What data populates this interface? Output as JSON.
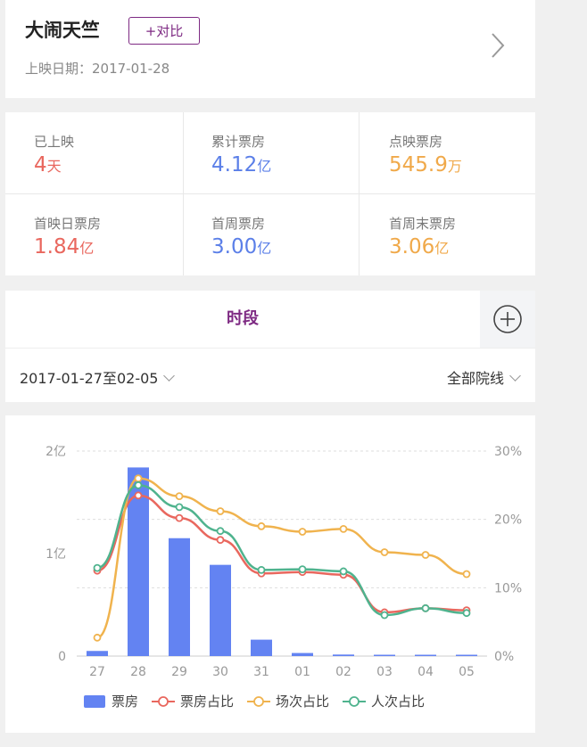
{
  "movie": {
    "title": "大闹天竺",
    "compare_label": "+对比",
    "release_label": "上映日期：2017-01-28"
  },
  "stats": [
    {
      "label": "已上映",
      "value": "4",
      "unit": "天",
      "color": "#e9675e"
    },
    {
      "label": "累计票房",
      "value": "4.12",
      "unit": "亿",
      "color": "#5b7fe8"
    },
    {
      "label": "点映票房",
      "value": "545.9",
      "unit": "万",
      "color": "#f0a94a"
    },
    {
      "label": "首映日票房",
      "value": "1.84",
      "unit": "亿",
      "color": "#e9675e"
    },
    {
      "label": "首周票房",
      "value": "3.00",
      "unit": "亿",
      "color": "#5b7fe8"
    },
    {
      "label": "首周末票房",
      "value": "3.06",
      "unit": "亿",
      "color": "#f0a94a"
    }
  ],
  "tabs": {
    "active": "时段"
  },
  "filter": {
    "date_range": "2017-01-27至02-05",
    "cinema_line": "全部院线"
  },
  "chart_data": {
    "type": "bar",
    "categories": [
      "27",
      "28",
      "29",
      "30",
      "31",
      "01",
      "02",
      "03",
      "04",
      "05"
    ],
    "left_axis": {
      "ticks": [
        "0",
        "1亿",
        "2亿"
      ],
      "ylim": [
        0,
        2
      ]
    },
    "right_axis": {
      "ticks": [
        "0%",
        "10%",
        "20%",
        "30%"
      ],
      "ylim": [
        0,
        30
      ]
    },
    "grid": true,
    "legend_position": "bottom",
    "series": [
      {
        "name": "票房",
        "kind": "bar",
        "axis": "left",
        "color": "#6383f2",
        "values": [
          0.05,
          1.84,
          1.15,
          0.89,
          0.16,
          0.03,
          0.015,
          0.01,
          0.004,
          0.003
        ]
      },
      {
        "name": "票房占比",
        "kind": "line",
        "axis": "right",
        "color": "#e9675e",
        "values": [
          12.5,
          23.5,
          20.2,
          17.0,
          12.1,
          12.3,
          11.9,
          6.4,
          7.0,
          6.7
        ]
      },
      {
        "name": "场次占比",
        "kind": "line",
        "axis": "right",
        "color": "#f0b34e",
        "values": [
          2.7,
          26.0,
          23.4,
          21.2,
          19.0,
          18.2,
          18.6,
          15.2,
          14.8,
          12.0
        ]
      },
      {
        "name": "人次占比",
        "kind": "line",
        "axis": "right",
        "color": "#4fb38e",
        "values": [
          12.9,
          25.0,
          21.8,
          18.3,
          12.6,
          12.7,
          12.4,
          6.0,
          7.0,
          6.3
        ]
      }
    ]
  }
}
